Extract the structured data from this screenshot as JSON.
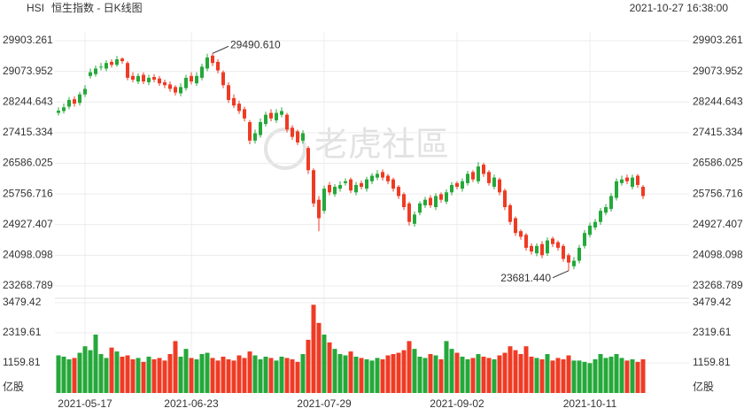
{
  "header": {
    "symbol": "HSI",
    "title": "恒生指数 - 日K线图",
    "timestamp": "2021-10-27 16:38:00"
  },
  "watermark": "老虎社區",
  "chart_data": {
    "type": "candlestick",
    "up_color": "#25a83a",
    "down_color": "#ef3b24",
    "grid": true,
    "ylim": [
      23268.789,
      29903.261
    ],
    "yticks": [
      29903.261,
      29073.952,
      28244.643,
      27415.334,
      26586.025,
      25756.716,
      24927.407,
      24098.098,
      23268.789
    ],
    "annotations": [
      "29490.610",
      "23681.440"
    ],
    "categories": [
      null,
      null,
      null,
      null,
      null,
      "2021-05-17",
      null,
      null,
      null,
      null,
      null,
      null,
      null,
      null,
      null,
      null,
      null,
      null,
      null,
      null,
      null,
      null,
      null,
      null,
      null,
      "2021-06-23",
      null,
      null,
      null,
      null,
      null,
      null,
      null,
      null,
      null,
      null,
      null,
      null,
      null,
      null,
      null,
      null,
      null,
      null,
      null,
      null,
      null,
      null,
      null,
      null,
      "2021-07-29",
      null,
      null,
      null,
      null,
      null,
      null,
      null,
      null,
      null,
      null,
      null,
      null,
      null,
      null,
      null,
      null,
      null,
      null,
      null,
      null,
      null,
      null,
      null,
      null,
      "2021-09-02",
      null,
      null,
      null,
      null,
      null,
      null,
      null,
      null,
      null,
      null,
      null,
      null,
      null,
      null,
      null,
      null,
      null,
      null,
      null,
      null,
      null,
      null,
      null,
      null,
      "2021-10-11",
      null,
      null,
      null,
      null,
      null,
      null,
      null,
      null,
      null,
      null
    ],
    "open": [
      27950,
      28000,
      28120,
      28320,
      28220,
      28450,
      28950,
      29000,
      29180,
      29150,
      29330,
      29250,
      29420,
      29300,
      28950,
      28800,
      28980,
      28780,
      28920,
      28880,
      28780,
      28720,
      28650,
      28480,
      28620,
      28950,
      28750,
      28900,
      29150,
      29500,
      29330,
      29050,
      28700,
      28350,
      28200,
      28050,
      27700,
      27200,
      27350,
      27650,
      27950,
      27750,
      27900,
      27900,
      27550,
      27450,
      27200,
      27000,
      26400,
      25600,
      25300,
      26000,
      25750,
      25900,
      26050,
      26150,
      25800,
      26050,
      25900,
      26100,
      26200,
      26350,
      26250,
      26150,
      25950,
      25750,
      25500,
      24950,
      25250,
      25450,
      25650,
      25400,
      25750,
      25550,
      25800,
      26050,
      25900,
      26050,
      26350,
      26100,
      26550,
      26350,
      25950,
      26150,
      25850,
      25450,
      25100,
      24750,
      24650,
      24350,
      24150,
      24400,
      24150,
      24550,
      24450,
      24350,
      24100,
      23800,
      23950,
      24350,
      24650,
      24850,
      25000,
      25250,
      25350,
      25650,
      26050,
      26200,
      25950,
      26250,
      25950
    ],
    "high": [
      28100,
      28200,
      28380,
      28400,
      28520,
      28700,
      29150,
      29230,
      29300,
      29380,
      29400,
      29490.61,
      29450,
      29350,
      29050,
      29020,
      29050,
      28980,
      29000,
      28950,
      28850,
      28800,
      28700,
      28750,
      28980,
      29050,
      29050,
      29280,
      29550,
      29560,
      29400,
      29100,
      28780,
      28450,
      28280,
      28120,
      27760,
      27500,
      27800,
      27980,
      28050,
      28050,
      28100,
      27950,
      27620,
      27500,
      27480,
      27050,
      26450,
      25700,
      25980,
      26080,
      26020,
      26100,
      26180,
      26200,
      26080,
      26120,
      26220,
      26320,
      26400,
      26420,
      26300,
      26200,
      26000,
      25800,
      25550,
      25280,
      25560,
      25680,
      25720,
      25780,
      25800,
      25880,
      26080,
      26100,
      26180,
      26380,
      26400,
      26620,
      26600,
      26400,
      26280,
      26200,
      25900,
      25500,
      25150,
      24800,
      24700,
      24420,
      24420,
      24480,
      24580,
      24600,
      24500,
      24400,
      24150,
      24050,
      24380,
      24780,
      24980,
      25080,
      25380,
      25480,
      25780,
      26180,
      26250,
      26280,
      26280,
      26300,
      26000
    ],
    "low": [
      27880,
      27930,
      28050,
      28120,
      28150,
      28380,
      28880,
      28930,
      29100,
      29080,
      29180,
      29200,
      29280,
      28830,
      28780,
      28730,
      28730,
      28700,
      28780,
      28680,
      28620,
      28520,
      28420,
      28400,
      28550,
      28720,
      28680,
      28830,
      29080,
      29220,
      29020,
      28620,
      28220,
      28080,
      27920,
      27720,
      27100,
      27120,
      27280,
      27580,
      27720,
      27680,
      27830,
      27420,
      27220,
      27080,
      27120,
      26300,
      25400,
      24748,
      25220,
      25720,
      25680,
      25820,
      25980,
      25780,
      25720,
      25880,
      25820,
      26020,
      26130,
      26120,
      26020,
      25820,
      25620,
      25320,
      24900,
      24870,
      25180,
      25380,
      25380,
      25320,
      25520,
      25480,
      25720,
      25880,
      25820,
      25980,
      26080,
      26030,
      26220,
      25980,
      25880,
      25720,
      25320,
      24920,
      24620,
      24520,
      24220,
      24120,
      24070,
      24020,
      24080,
      24320,
      24220,
      23920,
      23681.44,
      23720,
      23880,
      24280,
      24580,
      24780,
      24920,
      25180,
      25280,
      25580,
      25980,
      26020,
      25880,
      25920,
      25620
    ],
    "close": [
      28010,
      28100,
      28300,
      28200,
      28450,
      28600,
      29050,
      29150,
      29200,
      29300,
      29250,
      29400,
      29350,
      28900,
      28850,
      28950,
      28800,
      28900,
      28850,
      28750,
      28700,
      28600,
      28500,
      28650,
      28900,
      28800,
      28950,
      29200,
      29450,
      29300,
      29100,
      28700,
      28300,
      28150,
      28000,
      27800,
      27200,
      27400,
      27700,
      27900,
      27800,
      27950,
      28000,
      27500,
      27300,
      27150,
      27400,
      26400,
      25500,
      25100,
      25900,
      25800,
      25950,
      26000,
      26100,
      25850,
      26000,
      25950,
      26150,
      26250,
      26300,
      26200,
      26100,
      25900,
      25700,
      25400,
      25000,
      25200,
      25500,
      25600,
      25450,
      25700,
      25600,
      25800,
      26000,
      25950,
      26100,
      26300,
      26150,
      26500,
      26300,
      26050,
      26200,
      25800,
      25400,
      25000,
      24700,
      24600,
      24300,
      24200,
      24350,
      24100,
      24500,
      24400,
      24300,
      24000,
      23900,
      23950,
      24300,
      24700,
      24900,
      25000,
      25300,
      25400,
      25700,
      26100,
      26150,
      26100,
      26200,
      26000,
      25700
    ],
    "volume": [
      1450,
      1400,
      1300,
      1350,
      1550,
      1800,
      1650,
      2250,
      1500,
      1350,
      1750,
      1600,
      1400,
      1450,
      1300,
      1350,
      1200,
      1400,
      1300,
      1350,
      1250,
      1500,
      2000,
      1400,
      1700,
      1350,
      1300,
      1500,
      1550,
      1350,
      1250,
      1400,
      1300,
      1250,
      1450,
      1350,
      1600,
      1450,
      1300,
      1400,
      1350,
      1250,
      1400,
      1350,
      1300,
      1200,
      1500,
      2050,
      3400,
      2700,
      2250,
      1950,
      1700,
      1500,
      1450,
      1600,
      1400,
      1350,
      1300,
      1250,
      1350,
      1300,
      1450,
      1500,
      1550,
      1650,
      2000,
      1700,
      1400,
      1350,
      1500,
      1450,
      1300,
      2000,
      1700,
      1550,
      1400,
      1300,
      1350,
      1500,
      1400,
      1350,
      1300,
      1450,
      1550,
      1800,
      1650,
      1500,
      1800,
      1400,
      1350,
      1300,
      1500,
      1250,
      1350,
      1300,
      1450,
      1250,
      1250,
      1200,
      1150,
      1300,
      1500,
      1350,
      1400,
      1500,
      1350,
      1250,
      1300,
      1200,
      1300
    ],
    "volume_axis": {
      "ylim": [
        0,
        3479.42
      ],
      "yticks": [
        1159.81,
        2319.61,
        3479.42
      ],
      "unit": "亿股"
    }
  }
}
